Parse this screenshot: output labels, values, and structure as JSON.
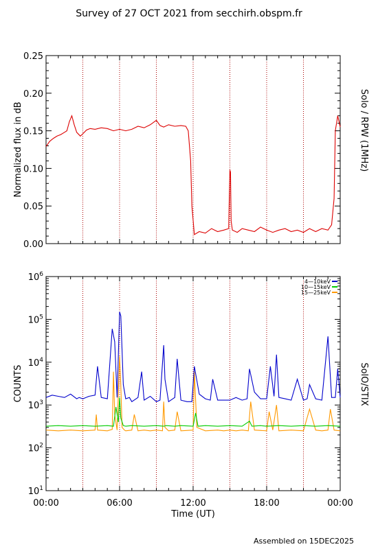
{
  "title": "Survey of 27 OCT 2021 from secchirh.obspm.fr",
  "footer": "Assembled on 15DEC2025",
  "chart_data": [
    {
      "type": "line",
      "ylabel": "Normalized flux in dB",
      "right_label": "Solo / RPW (1MHz)",
      "ylim": [
        0,
        0.25
      ],
      "yticks": [
        "0.00",
        "0.05",
        "0.10",
        "0.15",
        "0.20",
        "0.25"
      ],
      "xlim_hours": [
        0,
        24
      ],
      "vlines_hours": [
        3,
        6,
        9,
        12,
        15,
        18,
        21
      ],
      "series": [
        {
          "color": "#dd0000",
          "x": [
            0,
            0.3,
            0.6,
            0.9,
            1.2,
            1.5,
            1.7,
            1.9,
            2.1,
            2.3,
            2.5,
            2.8,
            3.0,
            3.3,
            3.6,
            4.0,
            4.5,
            5.0,
            5.5,
            6.0,
            6.5,
            7.0,
            7.5,
            8.0,
            8.5,
            9.0,
            9.3,
            9.6,
            10.0,
            10.5,
            11.0,
            11.4,
            11.6,
            11.8,
            11.9,
            12.1,
            12.5,
            13.0,
            13.5,
            14.0,
            14.5,
            14.9,
            15.0,
            15.05,
            15.1,
            15.2,
            15.6,
            16.0,
            16.5,
            17.0,
            17.5,
            18.0,
            18.5,
            19.0,
            19.5,
            20.0,
            20.5,
            21.0,
            21.5,
            22.0,
            22.5,
            23.0,
            23.3,
            23.5,
            23.6,
            23.8,
            24.0
          ],
          "y": [
            0.129,
            0.136,
            0.14,
            0.143,
            0.145,
            0.148,
            0.15,
            0.162,
            0.17,
            0.158,
            0.148,
            0.143,
            0.146,
            0.151,
            0.153,
            0.152,
            0.154,
            0.153,
            0.15,
            0.152,
            0.15,
            0.152,
            0.156,
            0.154,
            0.158,
            0.164,
            0.157,
            0.155,
            0.158,
            0.156,
            0.157,
            0.156,
            0.15,
            0.11,
            0.05,
            0.012,
            0.016,
            0.014,
            0.02,
            0.016,
            0.018,
            0.02,
            0.098,
            0.095,
            0.03,
            0.018,
            0.015,
            0.02,
            0.018,
            0.016,
            0.022,
            0.018,
            0.015,
            0.018,
            0.02,
            0.016,
            0.018,
            0.015,
            0.02,
            0.016,
            0.02,
            0.018,
            0.025,
            0.06,
            0.15,
            0.17,
            0.155
          ]
        }
      ]
    },
    {
      "type": "line",
      "ylabel": "COUNTS",
      "right_label": "SolO/STIX",
      "xlabel": "Time (UT)",
      "yscale": "log",
      "ylim": [
        10,
        1000000
      ],
      "yticks": [
        {
          "base": "10",
          "exp": "1",
          "value": 10
        },
        {
          "base": "10",
          "exp": "2",
          "value": 100
        },
        {
          "base": "10",
          "exp": "3",
          "value": 1000
        },
        {
          "base": "10",
          "exp": "4",
          "value": 10000
        },
        {
          "base": "10",
          "exp": "5",
          "value": 100000
        },
        {
          "base": "10",
          "exp": "6",
          "value": 1000000
        }
      ],
      "xlim_hours": [
        0,
        24
      ],
      "xticks": [
        "00:00",
        "06:00",
        "12:00",
        "18:00",
        "00:00"
      ],
      "vlines_hours": [
        3,
        6,
        9,
        12,
        15,
        18,
        21
      ],
      "legend_position": "top-right",
      "series": [
        {
          "name": "4—10keV",
          "color": "#0000cc",
          "x": [
            0,
            0.5,
            1.0,
            1.5,
            2.0,
            2.5,
            2.7,
            3.0,
            3.5,
            4.0,
            4.2,
            4.5,
            5.0,
            5.4,
            5.6,
            5.8,
            6.0,
            6.1,
            6.3,
            6.5,
            6.8,
            7.0,
            7.5,
            7.8,
            8.0,
            8.5,
            9.0,
            9.3,
            9.6,
            9.7,
            10.0,
            10.5,
            10.7,
            11.0,
            11.5,
            11.9,
            12.1,
            12.5,
            13.0,
            13.4,
            13.6,
            14.0,
            14.5,
            15.0,
            15.5,
            16.0,
            16.4,
            16.6,
            17.0,
            17.5,
            18.0,
            18.3,
            18.6,
            18.8,
            19.0,
            19.5,
            20.0,
            20.5,
            21.0,
            21.3,
            21.5,
            22.0,
            22.5,
            23.0,
            23.3,
            23.6,
            23.8,
            24.0
          ],
          "y": [
            1500,
            1700,
            1600,
            1500,
            1800,
            1400,
            1500,
            1400,
            1600,
            1700,
            8000,
            1500,
            1400,
            60000,
            30000,
            1500,
            150000,
            120000,
            3000,
            1400,
            1500,
            1200,
            1500,
            6000,
            1300,
            1600,
            1200,
            1300,
            25000,
            4000,
            1200,
            1500,
            12000,
            1300,
            1200,
            1200,
            8000,
            1800,
            1400,
            1300,
            4000,
            1300,
            1300,
            1300,
            1500,
            1300,
            1400,
            7000,
            2000,
            1400,
            1400,
            8000,
            1600,
            15000,
            1500,
            1400,
            1300,
            4000,
            1300,
            1400,
            3000,
            1400,
            1300,
            40000,
            1500,
            1500,
            7000,
            1500
          ]
        },
        {
          "name": "10—15keV",
          "color": "#00cc00",
          "x": [
            0,
            1.0,
            2.0,
            3.0,
            4.0,
            5.0,
            5.5,
            5.7,
            5.9,
            6.0,
            6.1,
            6.3,
            6.5,
            7.0,
            8.0,
            9.0,
            9.6,
            9.8,
            10.5,
            11.0,
            12.0,
            12.2,
            12.4,
            13.0,
            14.0,
            15.0,
            16.0,
            16.6,
            16.8,
            17.5,
            18.0,
            19.0,
            20.0,
            21.0,
            22.0,
            23.0,
            24.0
          ],
          "y": [
            320,
            330,
            320,
            330,
            320,
            330,
            320,
            900,
            400,
            1500,
            500,
            330,
            320,
            330,
            320,
            330,
            320,
            330,
            320,
            330,
            320,
            650,
            320,
            330,
            320,
            330,
            320,
            420,
            320,
            330,
            320,
            330,
            320,
            330,
            320,
            330,
            320
          ]
        },
        {
          "name": "15—25keV",
          "color": "#ff9900",
          "x": [
            0,
            1.0,
            2.0,
            3.0,
            4.0,
            4.1,
            4.2,
            5.0,
            5.4,
            5.5,
            5.6,
            5.8,
            6.0,
            6.1,
            6.2,
            6.4,
            6.5,
            7.0,
            7.2,
            7.5,
            8.0,
            8.5,
            9.0,
            9.5,
            9.6,
            9.7,
            10.0,
            10.5,
            10.7,
            11.0,
            12.0,
            12.1,
            12.3,
            13.0,
            14.0,
            14.5,
            15.0,
            15.5,
            16.0,
            16.5,
            16.7,
            17.0,
            18.0,
            18.2,
            18.5,
            18.8,
            19.0,
            20.0,
            21.0,
            21.5,
            22.0,
            22.5,
            23.0,
            23.2,
            23.5,
            24.0
          ],
          "y": [
            260,
            250,
            260,
            250,
            260,
            600,
            260,
            250,
            270,
            6000,
            600,
            260,
            14000,
            3000,
            300,
            260,
            250,
            260,
            600,
            250,
            260,
            250,
            260,
            250,
            1200,
            300,
            250,
            260,
            700,
            250,
            260,
            6000,
            300,
            250,
            260,
            250,
            260,
            250,
            260,
            250,
            1200,
            260,
            250,
            700,
            260,
            1000,
            250,
            260,
            250,
            800,
            260,
            250,
            260,
            800,
            260,
            250
          ]
        }
      ]
    }
  ]
}
